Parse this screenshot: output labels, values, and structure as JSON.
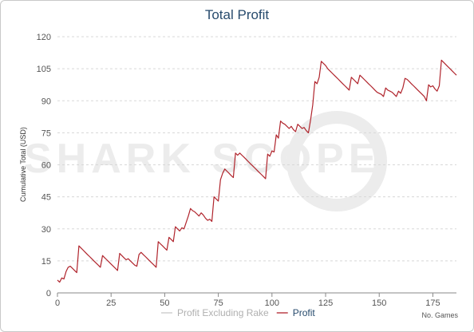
{
  "chart_data": {
    "type": "line",
    "title": "Total Profit",
    "ylabel": "Cumulative Total (USD)",
    "xlabel": "No. Games",
    "watermark": "SHARK SCOPE",
    "xlim": [
      0,
      186
    ],
    "ylim": [
      0,
      120
    ],
    "xticks": [
      0,
      25,
      50,
      75,
      100,
      125,
      150,
      175
    ],
    "yticks": [
      0,
      15,
      30,
      45,
      60,
      75,
      90,
      105,
      120
    ],
    "grid": true,
    "legend_position": "bottom-center",
    "colors": {
      "profit": "#b0242c",
      "profit_excluding_rake": "#c8c8c8",
      "grid": "#d8d8d8",
      "title": "#274b6d"
    },
    "legend": [
      {
        "label": "Profit Excluding Rake",
        "color": "#c8c8c8",
        "active": false
      },
      {
        "label": "Profit",
        "color": "#b0242c",
        "active": true
      }
    ],
    "series": [
      {
        "name": "Profit",
        "points": [
          [
            0,
            6
          ],
          [
            1,
            5
          ],
          [
            2,
            7
          ],
          [
            3,
            6.5
          ],
          [
            4,
            10
          ],
          [
            5,
            12
          ],
          [
            6,
            12.5
          ],
          [
            7,
            11.5
          ],
          [
            8,
            10.5
          ],
          [
            9,
            9.5
          ],
          [
            10,
            22
          ],
          [
            11,
            21
          ],
          [
            12,
            20
          ],
          [
            13,
            19
          ],
          [
            14,
            18
          ],
          [
            15,
            17
          ],
          [
            16,
            16
          ],
          [
            17,
            15
          ],
          [
            18,
            14
          ],
          [
            19,
            13
          ],
          [
            20,
            12
          ],
          [
            21,
            17.5
          ],
          [
            22,
            16.5
          ],
          [
            23,
            15.5
          ],
          [
            24,
            14.5
          ],
          [
            25,
            13.5
          ],
          [
            26,
            12.5
          ],
          [
            27,
            11.5
          ],
          [
            28,
            10.5
          ],
          [
            29,
            18.5
          ],
          [
            30,
            17.5
          ],
          [
            31,
            16.5
          ],
          [
            32,
            15.5
          ],
          [
            33,
            16
          ],
          [
            34,
            15
          ],
          [
            35,
            14
          ],
          [
            36,
            13
          ],
          [
            37,
            12.5
          ],
          [
            38,
            18
          ],
          [
            39,
            19
          ],
          [
            40,
            18
          ],
          [
            41,
            17
          ],
          [
            42,
            16
          ],
          [
            43,
            15
          ],
          [
            44,
            14
          ],
          [
            45,
            13
          ],
          [
            46,
            12
          ],
          [
            47,
            24
          ],
          [
            48,
            23
          ],
          [
            49,
            22
          ],
          [
            50,
            21
          ],
          [
            51,
            20
          ],
          [
            52,
            26
          ],
          [
            53,
            25
          ],
          [
            54,
            24
          ],
          [
            55,
            31
          ],
          [
            56,
            30
          ],
          [
            57,
            29
          ],
          [
            58,
            30.5
          ],
          [
            59,
            30
          ],
          [
            60,
            33
          ],
          [
            61,
            36
          ],
          [
            62,
            39.5
          ],
          [
            63,
            38.5
          ],
          [
            64,
            38
          ],
          [
            65,
            37
          ],
          [
            66,
            36
          ],
          [
            67,
            37.5
          ],
          [
            68,
            36.5
          ],
          [
            69,
            35
          ],
          [
            70,
            34
          ],
          [
            71,
            34.5
          ],
          [
            72,
            33.5
          ],
          [
            73,
            45
          ],
          [
            74,
            44
          ],
          [
            75,
            43
          ],
          [
            76,
            53
          ],
          [
            77,
            56
          ],
          [
            78,
            58
          ],
          [
            79,
            57
          ],
          [
            80,
            56
          ],
          [
            81,
            55
          ],
          [
            82,
            54
          ],
          [
            83,
            65.5
          ],
          [
            84,
            64.5
          ],
          [
            85,
            65.5
          ],
          [
            86,
            64.5
          ],
          [
            87,
            63.5
          ],
          [
            88,
            62.5
          ],
          [
            89,
            61.5
          ],
          [
            90,
            60.5
          ],
          [
            91,
            59.5
          ],
          [
            92,
            58.5
          ],
          [
            93,
            57.5
          ],
          [
            94,
            56.5
          ],
          [
            95,
            55.5
          ],
          [
            96,
            54.5
          ],
          [
            97,
            53.5
          ],
          [
            98,
            65
          ],
          [
            99,
            64
          ],
          [
            100,
            66.5
          ],
          [
            101,
            66
          ],
          [
            102,
            74
          ],
          [
            103,
            72.5
          ],
          [
            104,
            80.5
          ],
          [
            105,
            79.5
          ],
          [
            106,
            79
          ],
          [
            107,
            78
          ],
          [
            108,
            77
          ],
          [
            109,
            78
          ],
          [
            110,
            76.5
          ],
          [
            111,
            75.5
          ],
          [
            112,
            79
          ],
          [
            113,
            78
          ],
          [
            114,
            77
          ],
          [
            115,
            77.5
          ],
          [
            116,
            76
          ],
          [
            117,
            75
          ],
          [
            118,
            81
          ],
          [
            119,
            88
          ],
          [
            120,
            99
          ],
          [
            121,
            98
          ],
          [
            122,
            101
          ],
          [
            123,
            108.5
          ],
          [
            124,
            107.5
          ],
          [
            125,
            106.5
          ],
          [
            126,
            105
          ],
          [
            127,
            104
          ],
          [
            128,
            103
          ],
          [
            129,
            102
          ],
          [
            130,
            101
          ],
          [
            131,
            100
          ],
          [
            132,
            99
          ],
          [
            133,
            98
          ],
          [
            134,
            97
          ],
          [
            135,
            96
          ],
          [
            136,
            95
          ],
          [
            137,
            101
          ],
          [
            138,
            100
          ],
          [
            139,
            99
          ],
          [
            140,
            98
          ],
          [
            141,
            102
          ],
          [
            142,
            101
          ],
          [
            143,
            100
          ],
          [
            144,
            99
          ],
          [
            145,
            98
          ],
          [
            146,
            97
          ],
          [
            147,
            96
          ],
          [
            148,
            95
          ],
          [
            149,
            94
          ],
          [
            150,
            93.5
          ],
          [
            151,
            93
          ],
          [
            152,
            92
          ],
          [
            153,
            96
          ],
          [
            154,
            95
          ],
          [
            155,
            94.5
          ],
          [
            156,
            94
          ],
          [
            157,
            93
          ],
          [
            158,
            92
          ],
          [
            159,
            94.5
          ],
          [
            160,
            93.5
          ],
          [
            161,
            96
          ],
          [
            162,
            100.5
          ],
          [
            163,
            100
          ],
          [
            164,
            99
          ],
          [
            165,
            98
          ],
          [
            166,
            97
          ],
          [
            167,
            96
          ],
          [
            168,
            95
          ],
          [
            169,
            94
          ],
          [
            170,
            93
          ],
          [
            171,
            92
          ],
          [
            172,
            90
          ],
          [
            173,
            97.5
          ],
          [
            174,
            96.5
          ],
          [
            175,
            97
          ],
          [
            176,
            95.5
          ],
          [
            177,
            94.5
          ],
          [
            178,
            97
          ],
          [
            179,
            109
          ],
          [
            180,
            108
          ],
          [
            181,
            107
          ],
          [
            182,
            106
          ],
          [
            183,
            105
          ],
          [
            184,
            104
          ],
          [
            185,
            103
          ],
          [
            186,
            102
          ]
        ]
      }
    ]
  }
}
